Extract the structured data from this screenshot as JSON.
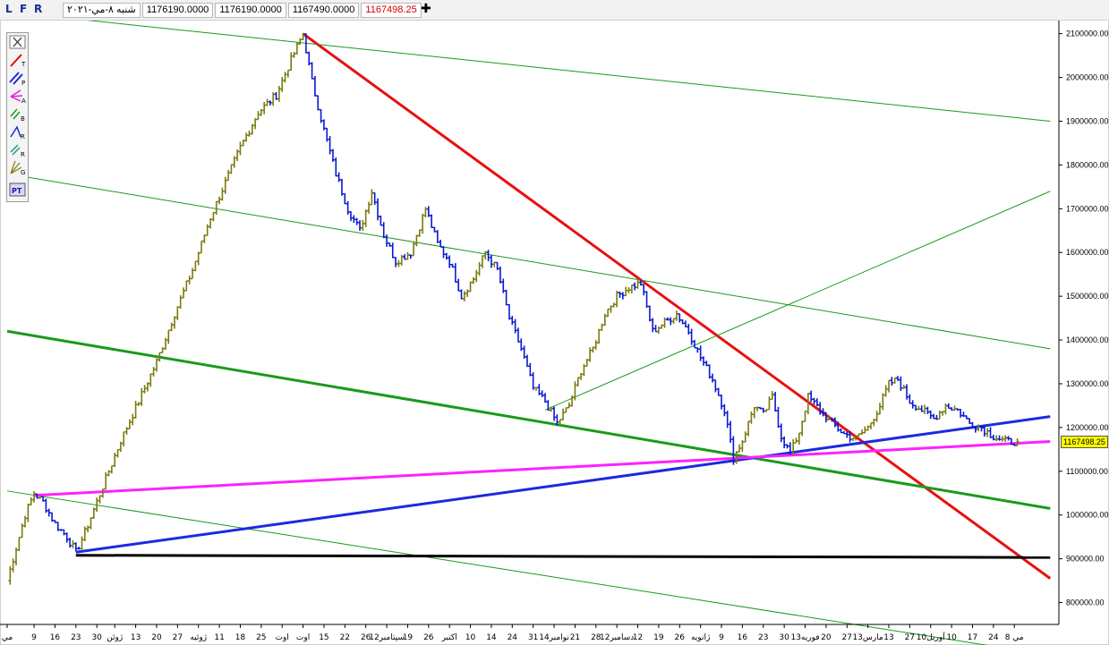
{
  "infobar": {
    "letters": [
      "L",
      "F",
      "R"
    ],
    "fields": [
      "شنبه ۸-مي-۲۰۲۱",
      "1176190.0000",
      "1176190.0000",
      "1167490.0000",
      "1167498.25"
    ],
    "plus": "✚"
  },
  "toolbox": {
    "tools": [
      {
        "name": "close-tool",
        "icon": "close-icon",
        "letter": ""
      },
      {
        "name": "trendline-tool",
        "icon": "trendline-icon",
        "letter": "T"
      },
      {
        "name": "parallel-tool",
        "icon": "parallel-lines-icon",
        "letter": "P"
      },
      {
        "name": "pitchfork-tool",
        "icon": "pitchfork-icon",
        "letter": "A"
      },
      {
        "name": "b-tool",
        "icon": "channel-icon",
        "letter": "B"
      },
      {
        "name": "regression-tool",
        "icon": "regression-icon",
        "letter": "R"
      },
      {
        "name": "raff-tool",
        "icon": "raff-icon",
        "letter": "R"
      },
      {
        "name": "gann-tool",
        "icon": "gann-fan-icon",
        "letter": "G"
      },
      {
        "name": "text-tool",
        "icon": "text-icon",
        "letter": "PT"
      }
    ]
  },
  "price_tag": "1167498.25",
  "colors": {
    "up_bar": "#7a7a10",
    "down_bar": "#0a1ad0",
    "red_line": "#e81010",
    "green_channel": "#1a9a1a",
    "blue_line": "#1a2ae0",
    "magenta_line": "#ff20ff",
    "support_line": "#000000",
    "price_tag_bg": "#ffff00"
  },
  "chart_data": {
    "type": "line",
    "title": "",
    "ylim": [
      750000,
      2130000
    ],
    "yticks": [
      800000,
      900000,
      1000000,
      1100000,
      1200000,
      1300000,
      1400000,
      1500000,
      1600000,
      1700000,
      1800000,
      1900000,
      2000000,
      2100000
    ],
    "xticks": [
      {
        "i": 0,
        "label": "مي"
      },
      {
        "i": 9,
        "label": "9"
      },
      {
        "i": 16,
        "label": "16"
      },
      {
        "i": 23,
        "label": "23"
      },
      {
        "i": 30,
        "label": "30"
      },
      {
        "i": 36,
        "label": "ژوئن"
      },
      {
        "i": 43,
        "label": "13"
      },
      {
        "i": 50,
        "label": "20"
      },
      {
        "i": 57,
        "label": "27"
      },
      {
        "i": 64,
        "label": "ژوئيه"
      },
      {
        "i": 71,
        "label": "11"
      },
      {
        "i": 78,
        "label": "18"
      },
      {
        "i": 85,
        "label": "25"
      },
      {
        "i": 92,
        "label": "اوت"
      },
      {
        "i": 99,
        "label": "اوت"
      },
      {
        "i": 106,
        "label": "15"
      },
      {
        "i": 113,
        "label": "22"
      },
      {
        "i": 120,
        "label": "26"
      },
      {
        "i": 127,
        "label": "سپتامبر12"
      },
      {
        "i": 134,
        "label": "19"
      },
      {
        "i": 141,
        "label": "26"
      },
      {
        "i": 148,
        "label": "اکتبر"
      },
      {
        "i": 155,
        "label": "10"
      },
      {
        "i": 162,
        "label": "14"
      },
      {
        "i": 169,
        "label": "24"
      },
      {
        "i": 176,
        "label": "31"
      },
      {
        "i": 183,
        "label": "نوامبر14"
      },
      {
        "i": 190,
        "label": "21"
      },
      {
        "i": 197,
        "label": "28"
      },
      {
        "i": 204,
        "label": "دسامبر12"
      },
      {
        "i": 211,
        "label": "12"
      },
      {
        "i": 218,
        "label": "19"
      },
      {
        "i": 225,
        "label": "26"
      },
      {
        "i": 232,
        "label": "ژانويه"
      },
      {
        "i": 239,
        "label": "9"
      },
      {
        "i": 246,
        "label": "16"
      },
      {
        "i": 253,
        "label": "23"
      },
      {
        "i": 260,
        "label": "30"
      },
      {
        "i": 267,
        "label": "فوريه13"
      },
      {
        "i": 274,
        "label": "20"
      },
      {
        "i": 281,
        "label": "27"
      },
      {
        "i": 288,
        "label": "مارس13"
      },
      {
        "i": 295,
        "label": "13"
      },
      {
        "i": 302,
        "label": "27"
      },
      {
        "i": 309,
        "label": "آوريل10"
      },
      {
        "i": 316,
        "label": "10"
      },
      {
        "i": 323,
        "label": "17"
      },
      {
        "i": 330,
        "label": "24"
      },
      {
        "i": 337,
        "label": "مي 8"
      }
    ],
    "n_points": 352,
    "series": [
      {
        "values_anchors": [
          [
            0,
            850000
          ],
          [
            6,
            1000000
          ],
          [
            9,
            1050000
          ],
          [
            12,
            1030000
          ],
          [
            16,
            980000
          ],
          [
            20,
            950000
          ],
          [
            23,
            915000
          ],
          [
            26,
            960000
          ],
          [
            30,
            1030000
          ],
          [
            34,
            1100000
          ],
          [
            38,
            1170000
          ],
          [
            44,
            1260000
          ],
          [
            50,
            1350000
          ],
          [
            56,
            1460000
          ],
          [
            62,
            1560000
          ],
          [
            68,
            1680000
          ],
          [
            73,
            1760000
          ],
          [
            78,
            1840000
          ],
          [
            84,
            1920000
          ],
          [
            90,
            1960000
          ],
          [
            95,
            2040000
          ],
          [
            99,
            2100000
          ],
          [
            102,
            1990000
          ],
          [
            106,
            1880000
          ],
          [
            110,
            1780000
          ],
          [
            114,
            1700000
          ],
          [
            118,
            1650000
          ],
          [
            122,
            1740000
          ],
          [
            126,
            1640000
          ],
          [
            130,
            1580000
          ],
          [
            135,
            1600000
          ],
          [
            140,
            1700000
          ],
          [
            144,
            1620000
          ],
          [
            148,
            1580000
          ],
          [
            152,
            1500000
          ],
          [
            156,
            1540000
          ],
          [
            160,
            1600000
          ],
          [
            164,
            1560000
          ],
          [
            168,
            1450000
          ],
          [
            172,
            1380000
          ],
          [
            176,
            1290000
          ],
          [
            180,
            1260000
          ],
          [
            184,
            1210000
          ],
          [
            188,
            1250000
          ],
          [
            192,
            1330000
          ],
          [
            196,
            1380000
          ],
          [
            200,
            1460000
          ],
          [
            204,
            1500000
          ],
          [
            208,
            1520000
          ],
          [
            212,
            1530000
          ],
          [
            216,
            1420000
          ],
          [
            220,
            1440000
          ],
          [
            224,
            1460000
          ],
          [
            228,
            1420000
          ],
          [
            232,
            1360000
          ],
          [
            236,
            1310000
          ],
          [
            240,
            1240000
          ],
          [
            243,
            1130000
          ],
          [
            246,
            1170000
          ],
          [
            250,
            1250000
          ],
          [
            253,
            1230000
          ],
          [
            256,
            1270000
          ],
          [
            259,
            1180000
          ],
          [
            262,
            1140000
          ],
          [
            265,
            1190000
          ],
          [
            268,
            1270000
          ],
          [
            272,
            1240000
          ],
          [
            276,
            1210000
          ],
          [
            280,
            1185000
          ],
          [
            284,
            1175000
          ],
          [
            288,
            1200000
          ],
          [
            292,
            1250000
          ],
          [
            295,
            1300000
          ],
          [
            298,
            1310000
          ],
          [
            302,
            1260000
          ],
          [
            306,
            1240000
          ],
          [
            310,
            1220000
          ],
          [
            314,
            1250000
          ],
          [
            318,
            1240000
          ],
          [
            322,
            1210000
          ],
          [
            326,
            1200000
          ],
          [
            330,
            1180000
          ],
          [
            334,
            1168000
          ],
          [
            338,
            1167498
          ]
        ]
      }
    ],
    "lines": [
      {
        "name": "red-trendline",
        "color": "red",
        "from": [
          99,
          2100000
        ],
        "to": [
          349,
          855000
        ]
      },
      {
        "name": "green-channel-top",
        "color": "green",
        "from": [
          0,
          2150000
        ],
        "to": [
          349,
          1900000
        ]
      },
      {
        "name": "green-channel-upper",
        "color": "green",
        "from": [
          0,
          1780000
        ],
        "to": [
          349,
          1380000
        ]
      },
      {
        "name": "green-channel-lower",
        "color": "green",
        "from": [
          180,
          1240000
        ],
        "to": [
          349,
          1740000
        ]
      },
      {
        "name": "green-channel-main",
        "color": "green",
        "from": [
          0,
          1420000
        ],
        "to": [
          349,
          1015000
        ]
      },
      {
        "name": "green-channel-bottom",
        "color": "green",
        "from": [
          0,
          1055000
        ],
        "to": [
          330,
          700000
        ]
      },
      {
        "name": "blue-trendline",
        "color": "blue",
        "from": [
          23,
          915000
        ],
        "to": [
          349,
          1225000
        ]
      },
      {
        "name": "magenta-trendline",
        "color": "magenta",
        "from": [
          9,
          1045000
        ],
        "to": [
          349,
          1168000
        ]
      },
      {
        "name": "black-support",
        "color": "black",
        "from": [
          23,
          908000
        ],
        "to": [
          349,
          903000
        ]
      }
    ]
  }
}
